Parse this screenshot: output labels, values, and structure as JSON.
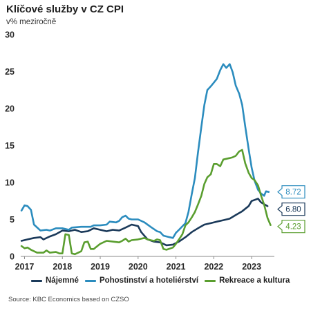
{
  "header": {
    "title": "Klíčové služby v CZ CPI",
    "subtitle": "v% meziročně"
  },
  "source": "Source: KBC Economics based on CZSO",
  "chart_data": {
    "type": "line",
    "title": "Klíčové služby v CZ CPI",
    "subtitle": "v% meziročně",
    "xlabel": "",
    "ylabel": "",
    "x_range": [
      2016.9,
      2023.6
    ],
    "ylim": [
      0,
      30
    ],
    "y_ticks": [
      0,
      5,
      10,
      15,
      20,
      25,
      30
    ],
    "y_tick_labels": [
      "0",
      "5",
      "10",
      "15",
      "20",
      "25",
      "30"
    ],
    "x_ticks": [
      2017,
      2018,
      2019,
      2020,
      2021,
      2022,
      2023
    ],
    "x_tick_labels": [
      "2017",
      "2018",
      "2019",
      "2020",
      "2021",
      "2022",
      "2023"
    ],
    "grid": false,
    "legend_position": "bottom",
    "series": [
      {
        "name": "Nájemné",
        "color": "#1b3a5a",
        "end_label": "6.80",
        "points": [
          [
            2016.92,
            2.1
          ],
          [
            2017.08,
            2.3
          ],
          [
            2017.25,
            2.5
          ],
          [
            2017.42,
            2.6
          ],
          [
            2017.5,
            2.3
          ],
          [
            2017.67,
            2.7
          ],
          [
            2017.83,
            3.0
          ],
          [
            2018.0,
            3.5
          ],
          [
            2018.17,
            3.4
          ],
          [
            2018.33,
            3.6
          ],
          [
            2018.5,
            3.3
          ],
          [
            2018.67,
            3.4
          ],
          [
            2018.83,
            3.8
          ],
          [
            2019.0,
            3.6
          ],
          [
            2019.17,
            3.4
          ],
          [
            2019.33,
            3.6
          ],
          [
            2019.5,
            3.5
          ],
          [
            2019.67,
            3.9
          ],
          [
            2019.83,
            4.3
          ],
          [
            2020.0,
            4.1
          ],
          [
            2020.08,
            3.3
          ],
          [
            2020.25,
            2.3
          ],
          [
            2020.42,
            2.0
          ],
          [
            2020.58,
            1.9
          ],
          [
            2020.75,
            1.5
          ],
          [
            2020.92,
            1.6
          ],
          [
            2021.08,
            2.0
          ],
          [
            2021.25,
            2.6
          ],
          [
            2021.42,
            3.3
          ],
          [
            2021.58,
            3.8
          ],
          [
            2021.75,
            4.3
          ],
          [
            2021.92,
            4.5
          ],
          [
            2022.08,
            4.7
          ],
          [
            2022.25,
            4.9
          ],
          [
            2022.42,
            5.1
          ],
          [
            2022.58,
            5.6
          ],
          [
            2022.75,
            6.1
          ],
          [
            2022.92,
            6.8
          ],
          [
            2023.0,
            7.5
          ],
          [
            2023.17,
            7.8
          ],
          [
            2023.25,
            7.3
          ],
          [
            2023.42,
            6.8
          ]
        ]
      },
      {
        "name": "Pohostinství a hoteliérství",
        "color": "#2b8cbe",
        "end_label": "8.72",
        "points": [
          [
            2016.92,
            6.2
          ],
          [
            2017.0,
            6.9
          ],
          [
            2017.08,
            6.8
          ],
          [
            2017.17,
            6.3
          ],
          [
            2017.25,
            4.3
          ],
          [
            2017.42,
            3.5
          ],
          [
            2017.58,
            3.6
          ],
          [
            2017.67,
            3.5
          ],
          [
            2017.83,
            3.8
          ],
          [
            2018.0,
            3.8
          ],
          [
            2018.17,
            3.6
          ],
          [
            2018.25,
            3.9
          ],
          [
            2018.5,
            4.0
          ],
          [
            2018.75,
            4.0
          ],
          [
            2018.83,
            4.2
          ],
          [
            2019.0,
            4.2
          ],
          [
            2019.17,
            4.3
          ],
          [
            2019.25,
            4.7
          ],
          [
            2019.42,
            4.6
          ],
          [
            2019.5,
            4.8
          ],
          [
            2019.58,
            5.3
          ],
          [
            2019.67,
            5.5
          ],
          [
            2019.75,
            5.1
          ],
          [
            2019.83,
            5.0
          ],
          [
            2020.0,
            5.0
          ],
          [
            2020.17,
            4.6
          ],
          [
            2020.33,
            4.0
          ],
          [
            2020.5,
            3.4
          ],
          [
            2020.58,
            3.3
          ],
          [
            2020.67,
            2.8
          ],
          [
            2020.83,
            2.6
          ],
          [
            2020.92,
            2.5
          ],
          [
            2021.0,
            3.2
          ],
          [
            2021.08,
            3.6
          ],
          [
            2021.25,
            4.5
          ],
          [
            2021.33,
            6.0
          ],
          [
            2021.42,
            8.5
          ],
          [
            2021.5,
            10.6
          ],
          [
            2021.58,
            14.0
          ],
          [
            2021.67,
            17.5
          ],
          [
            2021.75,
            20.5
          ],
          [
            2021.83,
            22.5
          ],
          [
            2021.92,
            23.0
          ],
          [
            2022.0,
            23.5
          ],
          [
            2022.08,
            24.0
          ],
          [
            2022.17,
            25.2
          ],
          [
            2022.25,
            26.0
          ],
          [
            2022.33,
            25.5
          ],
          [
            2022.42,
            26.0
          ],
          [
            2022.5,
            24.9
          ],
          [
            2022.58,
            23.1
          ],
          [
            2022.67,
            22.0
          ],
          [
            2022.75,
            20.5
          ],
          [
            2022.83,
            17.6
          ],
          [
            2022.92,
            14.5
          ],
          [
            2023.0,
            12.0
          ],
          [
            2023.08,
            10.2
          ],
          [
            2023.17,
            9.0
          ],
          [
            2023.25,
            8.5
          ],
          [
            2023.33,
            8.2
          ],
          [
            2023.38,
            8.8
          ],
          [
            2023.45,
            8.72
          ]
        ]
      },
      {
        "name": "Rekreace a kultura",
        "color": "#5a9e2f",
        "end_label": "4.23",
        "points": [
          [
            2016.92,
            1.4
          ],
          [
            2017.0,
            1.1
          ],
          [
            2017.08,
            1.2
          ],
          [
            2017.17,
            0.9
          ],
          [
            2017.33,
            0.5
          ],
          [
            2017.5,
            0.5
          ],
          [
            2017.58,
            0.8
          ],
          [
            2017.67,
            0.5
          ],
          [
            2017.83,
            0.6
          ],
          [
            2017.92,
            0.4
          ],
          [
            2018.0,
            0.4
          ],
          [
            2018.08,
            3.0
          ],
          [
            2018.17,
            2.9
          ],
          [
            2018.25,
            0.4
          ],
          [
            2018.33,
            0.3
          ],
          [
            2018.42,
            0.5
          ],
          [
            2018.5,
            0.7
          ],
          [
            2018.58,
            1.9
          ],
          [
            2018.67,
            2.0
          ],
          [
            2018.75,
            1.0
          ],
          [
            2018.83,
            1.0
          ],
          [
            2019.0,
            1.7
          ],
          [
            2019.17,
            2.1
          ],
          [
            2019.33,
            2.0
          ],
          [
            2019.5,
            1.9
          ],
          [
            2019.58,
            2.1
          ],
          [
            2019.67,
            2.4
          ],
          [
            2019.75,
            2.0
          ],
          [
            2019.83,
            2.2
          ],
          [
            2020.0,
            2.3
          ],
          [
            2020.17,
            2.5
          ],
          [
            2020.25,
            2.3
          ],
          [
            2020.33,
            2.2
          ],
          [
            2020.42,
            2.1
          ],
          [
            2020.5,
            2.3
          ],
          [
            2020.58,
            2.2
          ],
          [
            2020.67,
            1.0
          ],
          [
            2020.75,
            0.9
          ],
          [
            2020.92,
            1.2
          ],
          [
            2021.0,
            1.7
          ],
          [
            2021.08,
            2.3
          ],
          [
            2021.17,
            3.0
          ],
          [
            2021.25,
            4.2
          ],
          [
            2021.33,
            4.6
          ],
          [
            2021.42,
            5.3
          ],
          [
            2021.5,
            6.0
          ],
          [
            2021.58,
            7.0
          ],
          [
            2021.67,
            8.2
          ],
          [
            2021.75,
            9.8
          ],
          [
            2021.83,
            10.7
          ],
          [
            2021.92,
            11.1
          ],
          [
            2022.0,
            12.5
          ],
          [
            2022.08,
            12.5
          ],
          [
            2022.17,
            12.2
          ],
          [
            2022.25,
            13.1
          ],
          [
            2022.33,
            13.2
          ],
          [
            2022.42,
            13.3
          ],
          [
            2022.5,
            13.4
          ],
          [
            2022.58,
            13.6
          ],
          [
            2022.67,
            14.2
          ],
          [
            2022.75,
            14.4
          ],
          [
            2022.83,
            12.6
          ],
          [
            2022.92,
            11.3
          ],
          [
            2023.0,
            10.6
          ],
          [
            2023.08,
            10.3
          ],
          [
            2023.17,
            9.6
          ],
          [
            2023.25,
            8.2
          ],
          [
            2023.33,
            7.0
          ],
          [
            2023.42,
            5.2
          ],
          [
            2023.5,
            4.23
          ]
        ]
      }
    ]
  }
}
